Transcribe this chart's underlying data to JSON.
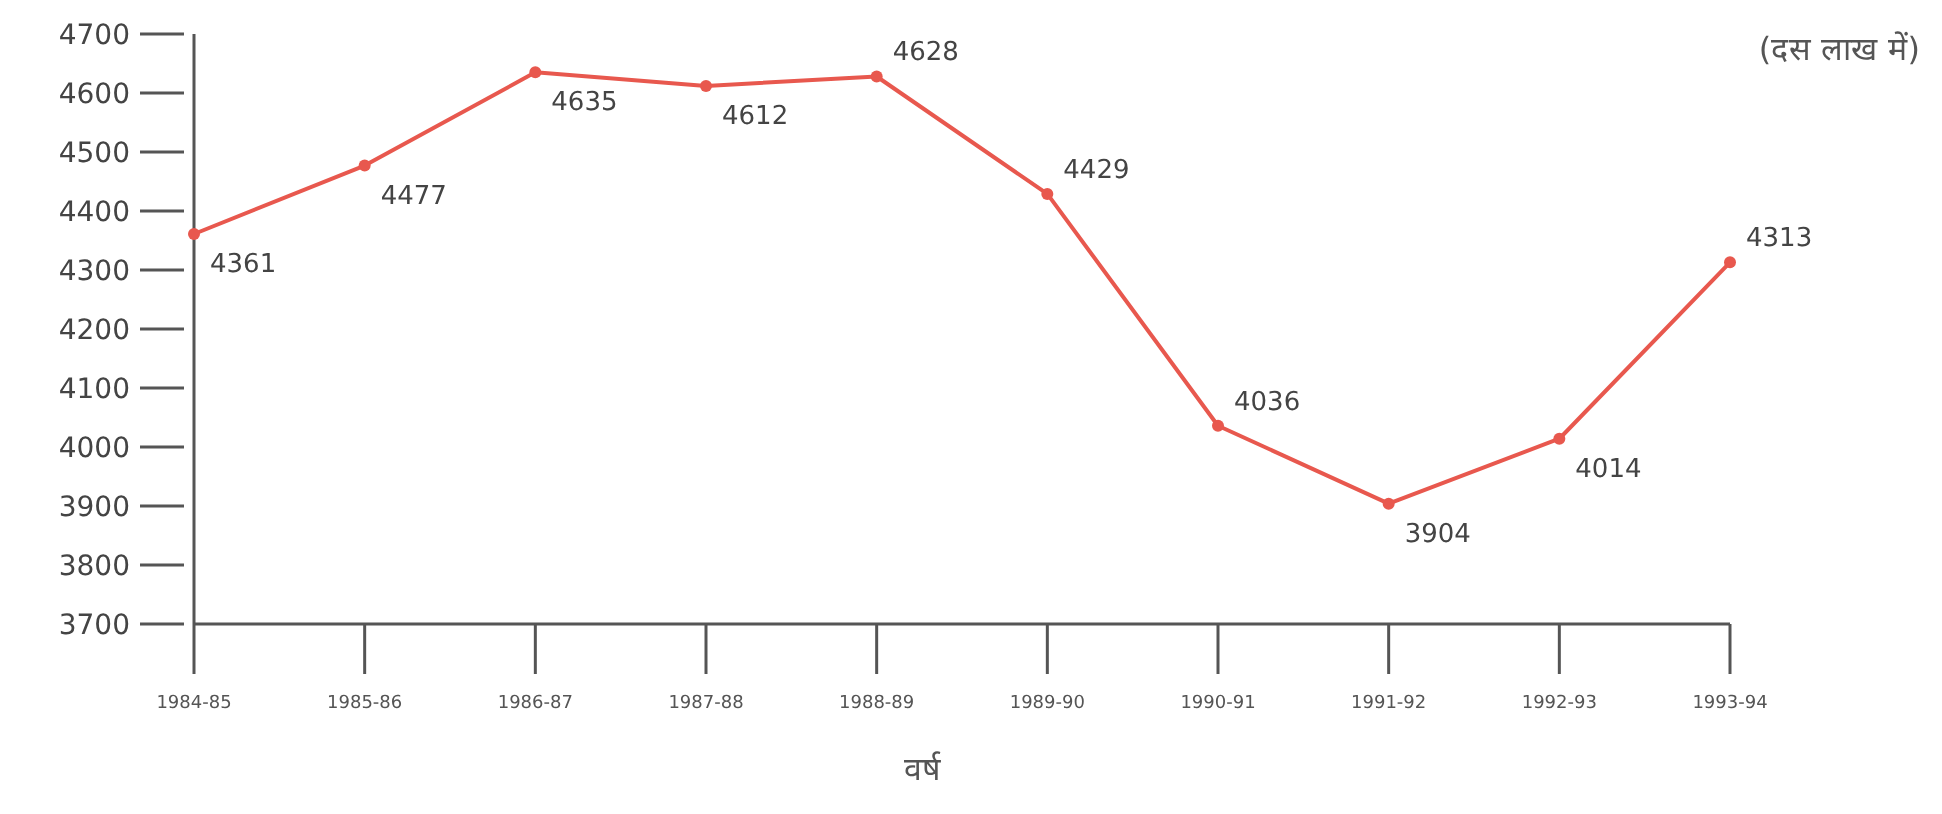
{
  "chart_data": {
    "type": "line",
    "categories": [
      "1984-85",
      "1985-86",
      "1986-87",
      "1987-88",
      "1988-89",
      "1989-90",
      "1990-91",
      "1991-92",
      "1992-93",
      "1993-94"
    ],
    "values": [
      4361,
      4477,
      4635,
      4612,
      4628,
      4429,
      4036,
      3904,
      4014,
      4313
    ],
    "color": "#e8584e",
    "ylim": [
      3700,
      4700
    ],
    "yticks": [
      3700,
      3800,
      3900,
      4000,
      4100,
      4200,
      4300,
      4400,
      4500,
      4600,
      4700
    ],
    "xlabel": "वर्ष",
    "annotations": [
      "(दस लाख में)"
    ],
    "data_labels": true,
    "marker": "circle",
    "grid": false
  }
}
